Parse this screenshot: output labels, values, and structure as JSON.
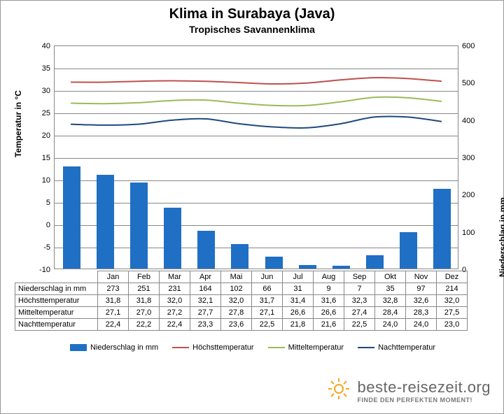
{
  "title": "Klima in Surabaya (Java)",
  "subtitle": "Tropisches Savannenklima",
  "months": [
    "Jan",
    "Feb",
    "Mar",
    "Apr",
    "Mai",
    "Jun",
    "Jul",
    "Aug",
    "Sep",
    "Okt",
    "Nov",
    "Dez"
  ],
  "row_labels": {
    "precip": "Niederschlag in mm",
    "high": "Höchsttemperatur",
    "mean": "Mitteltemperatur",
    "night": "Nachttemperatur"
  },
  "axes": {
    "left_label": "Temperatur in °C",
    "right_label": "Niederschlag in mm",
    "left_min": -10,
    "left_max": 40,
    "left_step": 5,
    "right_min": 0,
    "right_max": 600,
    "right_step": 100
  },
  "series": {
    "precip": {
      "type": "bar",
      "axis": "right",
      "values": [
        273,
        251,
        231,
        164,
        102,
        66,
        31,
        9,
        7,
        35,
        97,
        214
      ],
      "color": "#1f6fc4",
      "bar_width_frac": 0.52
    },
    "high": {
      "type": "line",
      "axis": "left",
      "values": [
        31.8,
        31.8,
        32.0,
        32.1,
        32.0,
        31.7,
        31.4,
        31.6,
        32.3,
        32.8,
        32.6,
        32.0
      ],
      "color": "#c0504d",
      "width": 2
    },
    "mean": {
      "type": "line",
      "axis": "left",
      "values": [
        27.1,
        27.0,
        27.2,
        27.7,
        27.8,
        27.1,
        26.6,
        26.6,
        27.4,
        28.4,
        28.3,
        27.5
      ],
      "color": "#9bbb59",
      "width": 2
    },
    "night": {
      "type": "line",
      "axis": "left",
      "values": [
        22.4,
        22.2,
        22.4,
        23.3,
        23.6,
        22.5,
        21.8,
        21.6,
        22.5,
        24.0,
        24.0,
        23.0
      ],
      "color": "#1f497d",
      "width": 2
    }
  },
  "legend": [
    {
      "key": "precip",
      "label": "Niederschlag in mm",
      "type": "bar",
      "color": "#1f6fc4"
    },
    {
      "key": "high",
      "label": "Höchsttemperatur",
      "type": "line",
      "color": "#c0504d"
    },
    {
      "key": "mean",
      "label": "Mitteltemperatur",
      "type": "line",
      "color": "#9bbb59"
    },
    {
      "key": "night",
      "label": "Nachttemperatur",
      "type": "line",
      "color": "#1f497d"
    }
  ],
  "table": {
    "display": {
      "precip": [
        "273",
        "251",
        "231",
        "164",
        "102",
        "66",
        "31",
        "9",
        "7",
        "35",
        "97",
        "214"
      ],
      "high": [
        "31,8",
        "31,8",
        "32,0",
        "32,1",
        "32,0",
        "31,7",
        "31,4",
        "31,6",
        "32,3",
        "32,8",
        "32,6",
        "32,0"
      ],
      "mean": [
        "27,1",
        "27,0",
        "27,2",
        "27,7",
        "27,8",
        "27,1",
        "26,6",
        "26,6",
        "27,4",
        "28,4",
        "28,3",
        "27,5"
      ],
      "night": [
        "22,4",
        "22,2",
        "22,4",
        "23,3",
        "23,6",
        "22,5",
        "21,8",
        "21,6",
        "22,5",
        "24,0",
        "24,0",
        "23,0"
      ]
    }
  },
  "styling": {
    "background": "#ffffff",
    "grid_color": "#888888",
    "tick_fontsize": 11,
    "label_fontsize": 12,
    "title_fontsize": 20,
    "subtitle_fontsize": 14
  },
  "logo": {
    "brand": "beste-reisezeit.org",
    "tagline": "FINDE DEN PERFEKTEN MOMENT!",
    "sun_color": "#f5a623"
  }
}
